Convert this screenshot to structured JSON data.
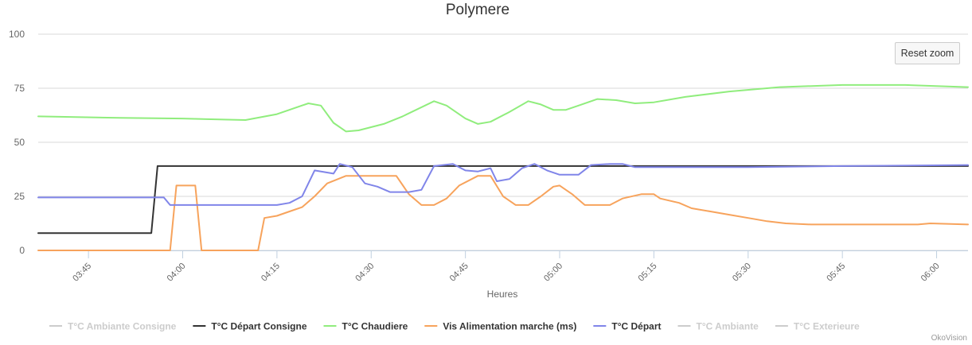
{
  "chart_data": {
    "type": "line",
    "title": "Polymere",
    "xlabel": "Heures",
    "ylabel": "",
    "ylim": [
      0,
      100
    ],
    "yticks": [
      0,
      25,
      50,
      75,
      100
    ],
    "xlim": [
      "03:37",
      "06:05"
    ],
    "xticks": [
      "03:45",
      "04:00",
      "04:15",
      "04:30",
      "04:45",
      "05:00",
      "05:15",
      "05:30",
      "05:45",
      "06:00"
    ],
    "grid": true,
    "legend_position": "bottom",
    "series": [
      {
        "name": "T°C Ambiante Consigne",
        "color": "#cccccc",
        "visible": false,
        "points": []
      },
      {
        "name": "T°C Départ Consigne",
        "color": "#333333",
        "visible": true,
        "points": [
          [
            "03:37",
            8
          ],
          [
            "03:55",
            8
          ],
          [
            "03:56",
            39
          ],
          [
            "06:05",
            39
          ]
        ]
      },
      {
        "name": "T°C Chaudiere",
        "color": "#90ed7d",
        "visible": true,
        "points": [
          [
            "03:37",
            62
          ],
          [
            "03:50",
            61.3
          ],
          [
            "04:00",
            61
          ],
          [
            "04:10",
            60.3
          ],
          [
            "04:15",
            63
          ],
          [
            "04:20",
            68
          ],
          [
            "04:22",
            67
          ],
          [
            "04:24",
            59
          ],
          [
            "04:26",
            55
          ],
          [
            "04:28",
            55.5
          ],
          [
            "04:32",
            58.5
          ],
          [
            "04:35",
            62
          ],
          [
            "04:40",
            69
          ],
          [
            "04:42",
            67
          ],
          [
            "04:45",
            61
          ],
          [
            "04:47",
            58.5
          ],
          [
            "04:49",
            59.5
          ],
          [
            "04:52",
            64
          ],
          [
            "04:55",
            69
          ],
          [
            "04:57",
            67.5
          ],
          [
            "04:59",
            65
          ],
          [
            "05:01",
            65
          ],
          [
            "05:03",
            67
          ],
          [
            "05:06",
            70
          ],
          [
            "05:09",
            69.5
          ],
          [
            "05:12",
            68
          ],
          [
            "05:15",
            68.5
          ],
          [
            "05:20",
            71
          ],
          [
            "05:27",
            73.5
          ],
          [
            "05:35",
            75.5
          ],
          [
            "05:45",
            76.5
          ],
          [
            "05:55",
            76.5
          ],
          [
            "06:05",
            75.5
          ]
        ]
      },
      {
        "name": "Vis Alimentation marche (ms)",
        "color": "#f7a35c",
        "visible": true,
        "points": [
          [
            "03:37",
            0
          ],
          [
            "03:58",
            0
          ],
          [
            "03:59",
            30
          ],
          [
            "04:02",
            30
          ],
          [
            "04:03",
            0
          ],
          [
            "04:12",
            0
          ],
          [
            "04:13",
            15
          ],
          [
            "04:15",
            16
          ],
          [
            "04:17",
            18
          ],
          [
            "04:19",
            20
          ],
          [
            "04:21",
            25
          ],
          [
            "04:23",
            31
          ],
          [
            "04:26",
            34.5
          ],
          [
            "04:34",
            34.5
          ],
          [
            "04:36",
            26
          ],
          [
            "04:38",
            21
          ],
          [
            "04:40",
            21
          ],
          [
            "04:42",
            24
          ],
          [
            "04:44",
            30
          ],
          [
            "04:47",
            34.5
          ],
          [
            "04:49",
            34.5
          ],
          [
            "04:51",
            25
          ],
          [
            "04:53",
            21
          ],
          [
            "04:55",
            21
          ],
          [
            "04:57",
            25
          ],
          [
            "04:59",
            29.5
          ],
          [
            "05:00",
            30
          ],
          [
            "05:02",
            26
          ],
          [
            "05:04",
            21
          ],
          [
            "05:08",
            21
          ],
          [
            "05:10",
            24
          ],
          [
            "05:13",
            26
          ],
          [
            "05:15",
            26
          ],
          [
            "05:16",
            24
          ],
          [
            "05:19",
            22
          ],
          [
            "05:21",
            19.5
          ],
          [
            "05:24",
            18
          ],
          [
            "05:27",
            16.5
          ],
          [
            "05:30",
            15
          ],
          [
            "05:33",
            13.5
          ],
          [
            "05:36",
            12.5
          ],
          [
            "05:40",
            12
          ],
          [
            "05:50",
            12
          ],
          [
            "05:57",
            12
          ],
          [
            "05:59",
            12.5
          ],
          [
            "06:05",
            12
          ]
        ]
      },
      {
        "name": "T°C Départ",
        "color": "#8085e9",
        "visible": true,
        "points": [
          [
            "03:37",
            24.5
          ],
          [
            "03:55",
            24.5
          ],
          [
            "03:57",
            24.5
          ],
          [
            "03:58",
            21
          ],
          [
            "04:15",
            21
          ],
          [
            "04:17",
            22
          ],
          [
            "04:19",
            25
          ],
          [
            "04:21",
            37
          ],
          [
            "04:24",
            35.5
          ],
          [
            "04:25",
            40
          ],
          [
            "04:27",
            38.5
          ],
          [
            "04:29",
            31
          ],
          [
            "04:31",
            29.5
          ],
          [
            "04:33",
            27
          ],
          [
            "04:36",
            27
          ],
          [
            "04:38",
            28
          ],
          [
            "04:40",
            39
          ],
          [
            "04:43",
            40
          ],
          [
            "04:45",
            37
          ],
          [
            "04:47",
            36.5
          ],
          [
            "04:49",
            38
          ],
          [
            "04:50",
            32
          ],
          [
            "04:52",
            33
          ],
          [
            "04:54",
            38
          ],
          [
            "04:56",
            40
          ],
          [
            "04:58",
            37
          ],
          [
            "05:00",
            35
          ],
          [
            "05:03",
            35
          ],
          [
            "05:05",
            39.5
          ],
          [
            "05:08",
            40
          ],
          [
            "05:10",
            40
          ],
          [
            "05:12",
            38.5
          ],
          [
            "05:20",
            38.5
          ],
          [
            "05:30",
            38.5
          ],
          [
            "05:45",
            39
          ],
          [
            "06:05",
            39.5
          ]
        ]
      },
      {
        "name": "T°C Ambiante",
        "color": "#cccccc",
        "visible": false,
        "points": []
      },
      {
        "name": "T°C Exterieure",
        "color": "#cccccc",
        "visible": false,
        "points": []
      }
    ]
  },
  "ui": {
    "reset_zoom_label": "Reset zoom",
    "credits": "OkoVision"
  }
}
